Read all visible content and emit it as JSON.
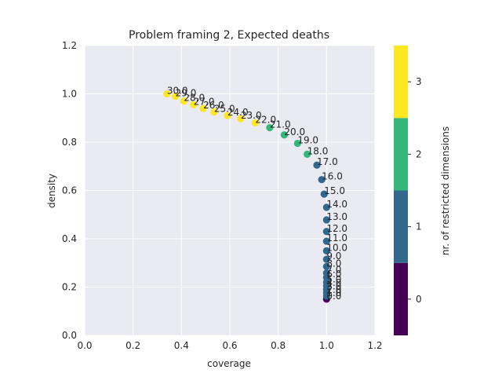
{
  "chart_data": {
    "type": "scatter",
    "title": "Problem framing 2, Expected deaths",
    "xlabel": "coverage",
    "ylabel": "density",
    "xlim": [
      0.0,
      1.2
    ],
    "ylim": [
      0.0,
      1.2
    ],
    "xticks": [
      "0.0",
      "0.2",
      "0.4",
      "0.6",
      "0.8",
      "1.0",
      "1.2"
    ],
    "yticks": [
      "0.0",
      "0.2",
      "0.4",
      "0.6",
      "0.8",
      "1.0",
      "1.2"
    ],
    "grid": true,
    "background": "#eaeaf2",
    "colorbar": {
      "label": "nr. of restricted dimensions",
      "levels": [
        0,
        1,
        2,
        3
      ],
      "tick_labels": [
        "0",
        "1",
        "2",
        "3"
      ],
      "colors": [
        "#440154",
        "#31688e",
        "#35b779",
        "#fde725"
      ]
    },
    "points": [
      {
        "label": "0.0",
        "coverage": 1.0,
        "density": 0.15,
        "restricted_dims": 0
      },
      {
        "label": "1.0",
        "coverage": 1.0,
        "density": 0.163,
        "restricted_dims": 1
      },
      {
        "label": "2.0",
        "coverage": 1.0,
        "density": 0.176,
        "restricted_dims": 1
      },
      {
        "label": "3.0",
        "coverage": 1.0,
        "density": 0.19,
        "restricted_dims": 1
      },
      {
        "label": "4.0",
        "coverage": 1.0,
        "density": 0.205,
        "restricted_dims": 1
      },
      {
        "label": "5.0",
        "coverage": 1.0,
        "density": 0.22,
        "restricted_dims": 1
      },
      {
        "label": "6.0",
        "coverage": 1.0,
        "density": 0.24,
        "restricted_dims": 1
      },
      {
        "label": "7.0",
        "coverage": 1.0,
        "density": 0.258,
        "restricted_dims": 1
      },
      {
        "label": "8.0",
        "coverage": 1.0,
        "density": 0.285,
        "restricted_dims": 1
      },
      {
        "label": "9.0",
        "coverage": 1.0,
        "density": 0.315,
        "restricted_dims": 1
      },
      {
        "label": "10.0",
        "coverage": 1.0,
        "density": 0.35,
        "restricted_dims": 1
      },
      {
        "label": "11.0",
        "coverage": 1.0,
        "density": 0.39,
        "restricted_dims": 1
      },
      {
        "label": "12.0",
        "coverage": 1.0,
        "density": 0.43,
        "restricted_dims": 1
      },
      {
        "label": "13.0",
        "coverage": 1.0,
        "density": 0.478,
        "restricted_dims": 1
      },
      {
        "label": "14.0",
        "coverage": 1.0,
        "density": 0.53,
        "restricted_dims": 1
      },
      {
        "label": "15.0",
        "coverage": 0.99,
        "density": 0.585,
        "restricted_dims": 1
      },
      {
        "label": "16.0",
        "coverage": 0.98,
        "density": 0.645,
        "restricted_dims": 1
      },
      {
        "label": "17.0",
        "coverage": 0.96,
        "density": 0.705,
        "restricted_dims": 1
      },
      {
        "label": "18.0",
        "coverage": 0.92,
        "density": 0.75,
        "restricted_dims": 2
      },
      {
        "label": "19.0",
        "coverage": 0.88,
        "density": 0.795,
        "restricted_dims": 2
      },
      {
        "label": "20.0",
        "coverage": 0.825,
        "density": 0.83,
        "restricted_dims": 2
      },
      {
        "label": "21.0",
        "coverage": 0.765,
        "density": 0.86,
        "restricted_dims": 2
      },
      {
        "label": "22.0",
        "coverage": 0.705,
        "density": 0.88,
        "restricted_dims": 3
      },
      {
        "label": "23.0",
        "coverage": 0.645,
        "density": 0.897,
        "restricted_dims": 3
      },
      {
        "label": "24.0",
        "coverage": 0.59,
        "density": 0.91,
        "restricted_dims": 3
      },
      {
        "label": "25.0",
        "coverage": 0.535,
        "density": 0.925,
        "restricted_dims": 3
      },
      {
        "label": "26.0",
        "coverage": 0.49,
        "density": 0.94,
        "restricted_dims": 3
      },
      {
        "label": "27.0",
        "coverage": 0.45,
        "density": 0.955,
        "restricted_dims": 3
      },
      {
        "label": "28.0",
        "coverage": 0.41,
        "density": 0.97,
        "restricted_dims": 3
      },
      {
        "label": "29.0",
        "coverage": 0.375,
        "density": 0.99,
        "restricted_dims": 3
      },
      {
        "label": "30.0",
        "coverage": 0.34,
        "density": 1.0,
        "restricted_dims": 3
      }
    ]
  }
}
